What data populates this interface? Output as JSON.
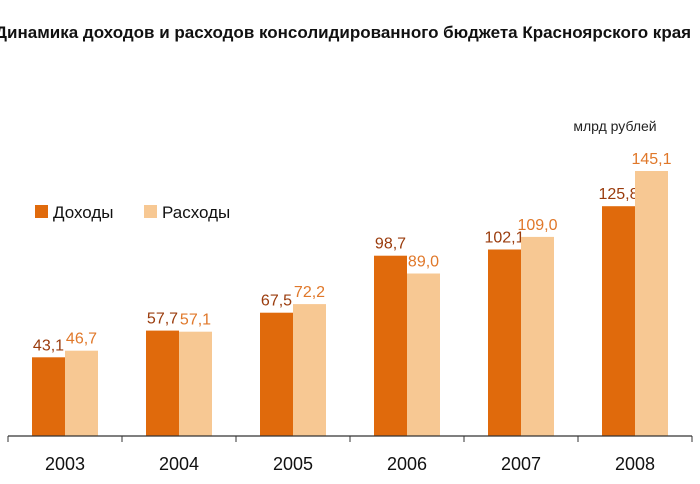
{
  "colors": {
    "income": "#E06A0C",
    "expense": "#F7C893",
    "income_label": "#9A3B0C",
    "expense_label": "#E0782A",
    "axis": "#333333"
  },
  "chart_data": {
    "type": "bar",
    "title": "Динамика доходов и расходов консолидированного бюджета Красноярского края",
    "unit": "млрд рублей",
    "categories": [
      "2003",
      "2004",
      "2005",
      "2006",
      "2007",
      "2008"
    ],
    "series": [
      {
        "name": "Доходы",
        "values": [
          43.1,
          57.7,
          67.5,
          98.7,
          102.1,
          125.8
        ],
        "labels": [
          "43,1",
          "57,7",
          "67,5",
          "98,7",
          "102,1",
          "125,8"
        ]
      },
      {
        "name": "Расходы",
        "values": [
          46.7,
          57.1,
          72.2,
          89.0,
          109.0,
          145.1
        ],
        "labels": [
          "46,7",
          "57,1",
          "72,2",
          "89,0",
          "109,0",
          "145,1"
        ]
      }
    ],
    "legend": "left",
    "grid": false,
    "ylim": [
      0,
      145.1
    ]
  }
}
